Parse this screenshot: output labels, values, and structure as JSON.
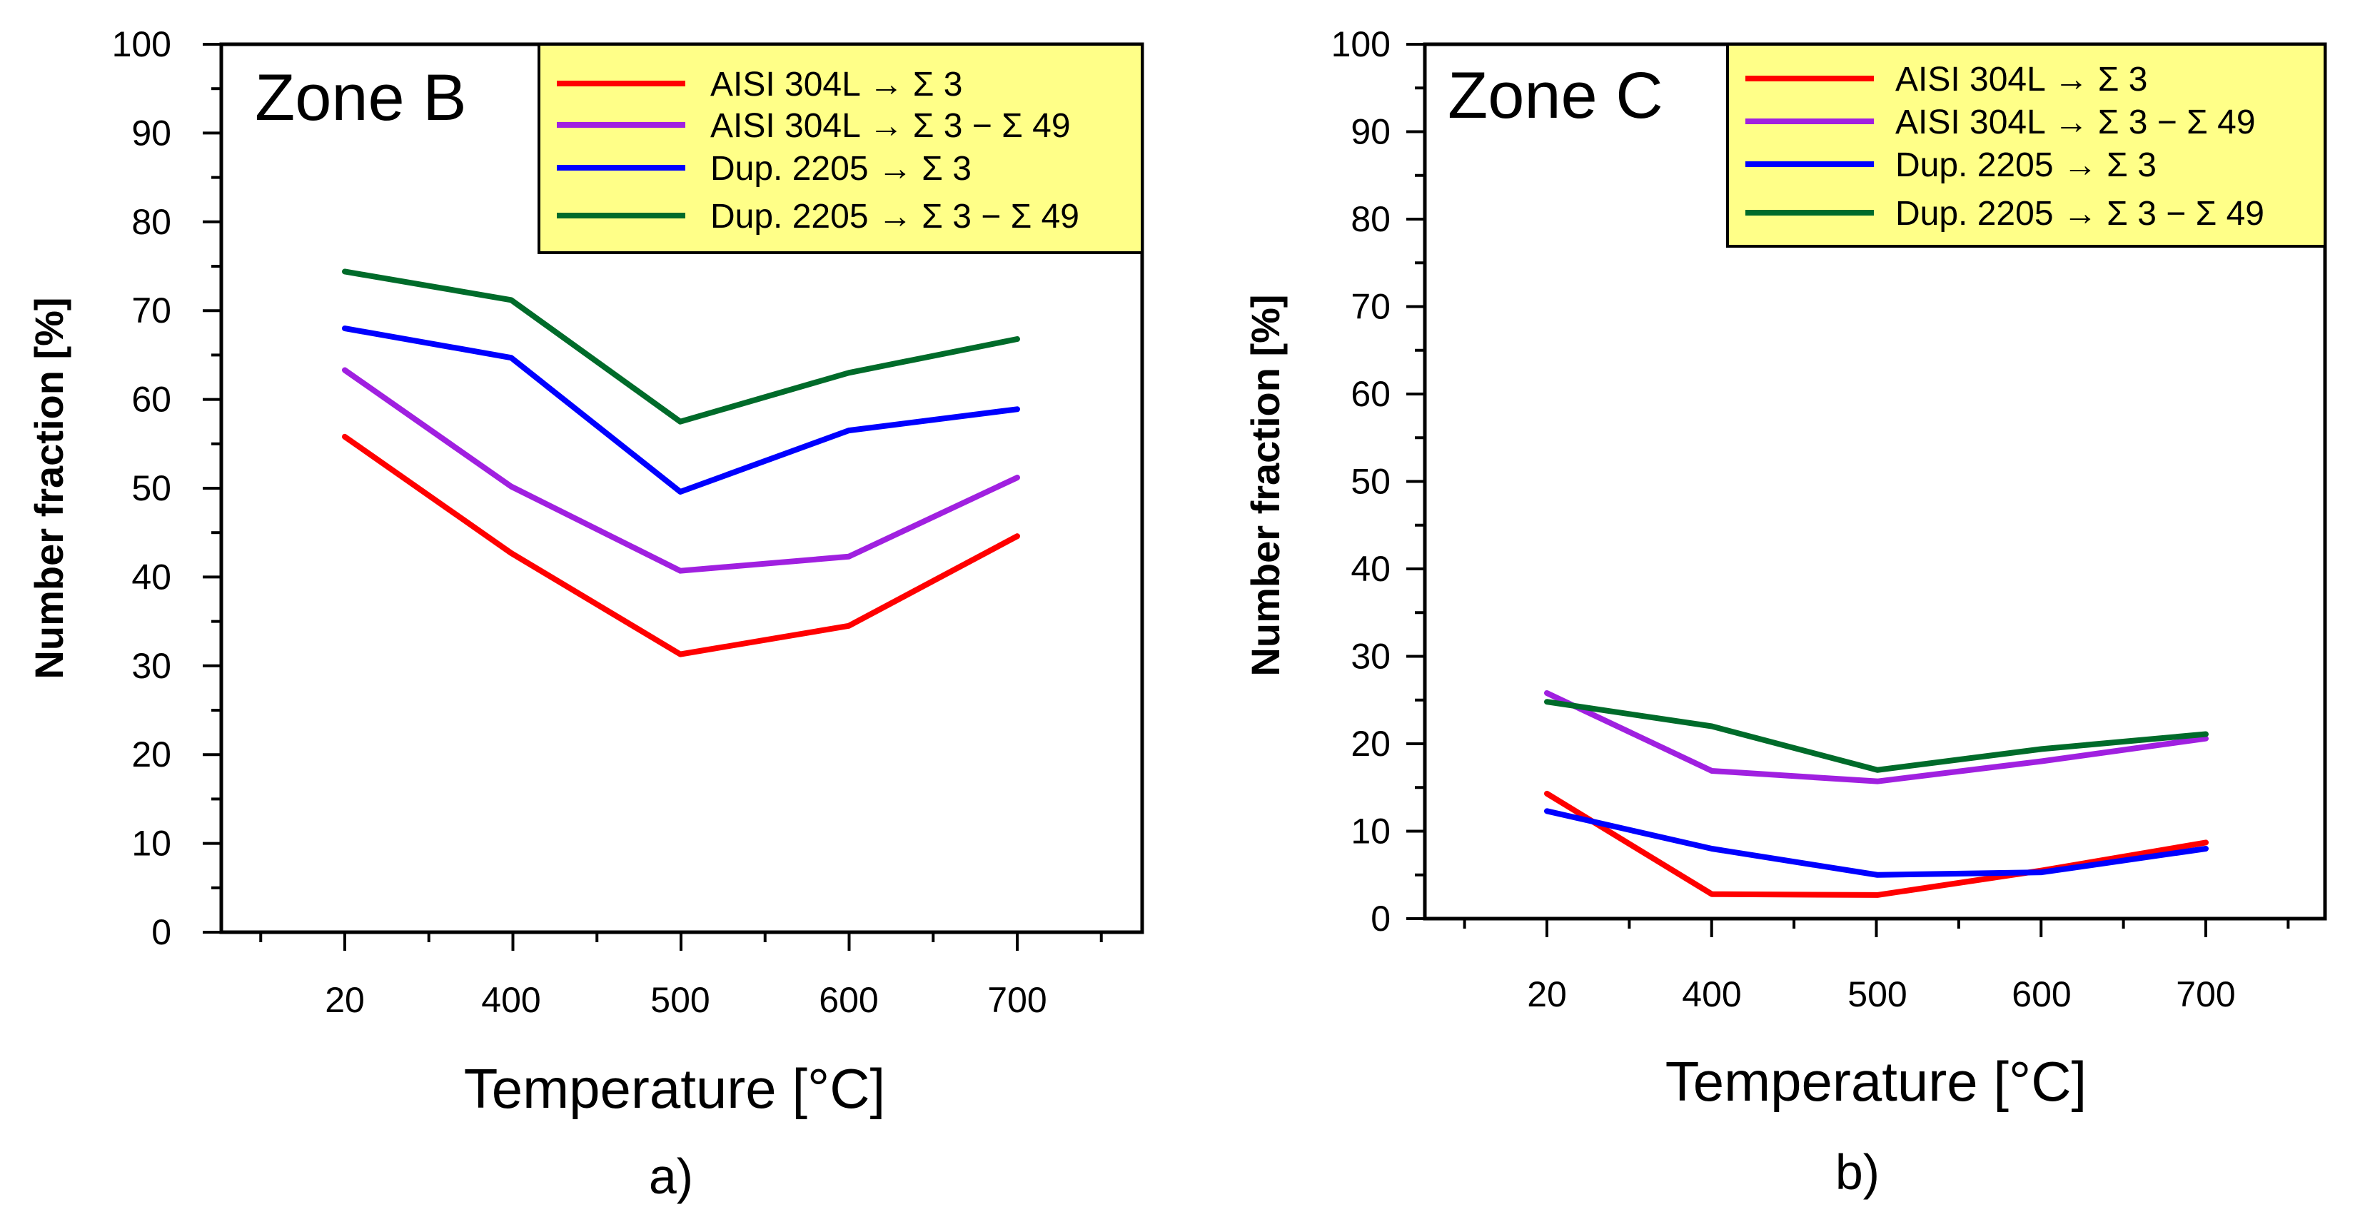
{
  "colors": {
    "aisi_s3": "#ff0000",
    "aisi_s3_s49": "#a020e0",
    "dup_s3": "#0000ff",
    "dup_s3_s49": "#006b2a",
    "legend_bg": "#ffff88"
  },
  "chart_data": [
    {
      "type": "line",
      "title": "Zone B",
      "panel_label": "a)",
      "xlabel": "Temperature [°C]",
      "ylabel": "Number fraction [%]",
      "categories": [
        "20",
        "400",
        "500",
        "600",
        "700"
      ],
      "ylim": [
        0,
        100
      ],
      "yticks": [
        0,
        10,
        20,
        30,
        40,
        50,
        60,
        70,
        80,
        90,
        100
      ],
      "grid": false,
      "legend_position": "top-right",
      "series": [
        {
          "name": "AISI 304L → Σ 3",
          "color_key": "aisi_s3",
          "values": [
            55.8,
            42.7,
            31.3,
            34.5,
            44.6
          ]
        },
        {
          "name": "AISI 304L → Σ 3 − Σ 49",
          "color_key": "aisi_s3_s49",
          "values": [
            63.3,
            50.2,
            40.7,
            42.3,
            51.2
          ]
        },
        {
          "name": "Dup. 2205 → Σ 3",
          "color_key": "dup_s3",
          "values": [
            68.0,
            64.7,
            49.6,
            56.5,
            58.9
          ]
        },
        {
          "name": "Dup. 2205 → Σ 3 − Σ 49",
          "color_key": "dup_s3_s49",
          "values": [
            74.4,
            71.2,
            57.5,
            63.0,
            66.8
          ]
        }
      ]
    },
    {
      "type": "line",
      "title": "Zone C",
      "panel_label": "b)",
      "xlabel": "Temperature [°C]",
      "ylabel": "Number fraction [%]",
      "categories": [
        "20",
        "400",
        "500",
        "600",
        "700"
      ],
      "ylim": [
        0,
        100
      ],
      "yticks": [
        0,
        10,
        20,
        30,
        40,
        50,
        60,
        70,
        80,
        90,
        100
      ],
      "grid": false,
      "legend_position": "top-right",
      "series": [
        {
          "name": "AISI 304L → Σ 3",
          "color_key": "aisi_s3",
          "values": [
            14.3,
            2.8,
            2.7,
            5.5,
            8.7
          ]
        },
        {
          "name": "AISI 304L → Σ 3 − Σ 49",
          "color_key": "aisi_s3_s49",
          "values": [
            25.8,
            16.9,
            15.7,
            18.0,
            20.6
          ]
        },
        {
          "name": "Dup. 2205 → Σ 3",
          "color_key": "dup_s3",
          "values": [
            12.3,
            8.0,
            5.0,
            5.3,
            8.0
          ]
        },
        {
          "name": "Dup. 2205 → Σ 3 − Σ 49",
          "color_key": "dup_s3_s49",
          "values": [
            24.8,
            22.0,
            17.0,
            19.4,
            21.1
          ]
        }
      ]
    }
  ]
}
